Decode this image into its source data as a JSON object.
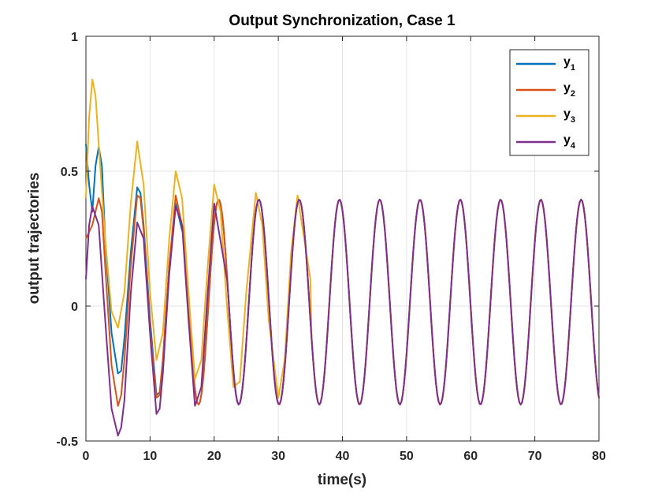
{
  "chart_data": {
    "type": "line",
    "title": "Output Synchronization, Case 1",
    "xlabel": "time(s)",
    "ylabel": "output trajectories",
    "xlim": [
      0,
      80
    ],
    "ylim": [
      -0.5,
      1
    ],
    "xticks": [
      0,
      10,
      20,
      30,
      40,
      50,
      60,
      70,
      80
    ],
    "xtick_labels": [
      "0",
      "10",
      "20",
      "30",
      "40",
      "50",
      "60",
      "70",
      "80"
    ],
    "yticks": [
      -0.5,
      0,
      0.5,
      1
    ],
    "ytick_labels": [
      "-0.5",
      "0",
      "0.5",
      "1"
    ],
    "grid": true,
    "legend_position": "top-right",
    "steady_state": {
      "amplitude": 0.38,
      "period": 6.28,
      "offset": 0.015
    },
    "series": [
      {
        "name": "y1",
        "label_main": "y",
        "label_sub": "1",
        "color": "#0072BD",
        "initial": 0.6,
        "points": [
          [
            0,
            0.6
          ],
          [
            0.5,
            0.45
          ],
          [
            1,
            0.35
          ],
          [
            1.5,
            0.52
          ],
          [
            2,
            0.59
          ],
          [
            2.5,
            0.52
          ],
          [
            3,
            0.25
          ],
          [
            4,
            -0.1
          ],
          [
            5,
            -0.25
          ],
          [
            5.5,
            -0.24
          ],
          [
            6,
            -0.12
          ],
          [
            7,
            0.2
          ],
          [
            8,
            0.44
          ],
          [
            8.5,
            0.42
          ],
          [
            9,
            0.3
          ],
          [
            10,
            -0.05
          ],
          [
            11,
            -0.33
          ],
          [
            11.5,
            -0.32
          ],
          [
            12,
            -0.2
          ],
          [
            13,
            0.15
          ],
          [
            14,
            0.38
          ],
          [
            15,
            0.28
          ]
        ]
      },
      {
        "name": "y2",
        "label_main": "y",
        "label_sub": "2",
        "color": "#D95319",
        "initial": 0.25,
        "points": [
          [
            0,
            0.25
          ],
          [
            1,
            0.3
          ],
          [
            2,
            0.4
          ],
          [
            2.5,
            0.35
          ],
          [
            3,
            0.15
          ],
          [
            4,
            -0.22
          ],
          [
            5,
            -0.37
          ],
          [
            5.5,
            -0.33
          ],
          [
            6,
            -0.2
          ],
          [
            7,
            0.15
          ],
          [
            8,
            0.41
          ],
          [
            8.5,
            0.4
          ],
          [
            9,
            0.28
          ],
          [
            10,
            -0.08
          ],
          [
            11,
            -0.34
          ],
          [
            11.5,
            -0.33
          ],
          [
            12,
            -0.2
          ],
          [
            13,
            0.15
          ],
          [
            14,
            0.41
          ],
          [
            15,
            0.3
          ]
        ]
      },
      {
        "name": "y3",
        "label_main": "y",
        "label_sub": "3",
        "color": "#EDB120",
        "initial": 0.4,
        "points": [
          [
            0,
            0.4
          ],
          [
            0.5,
            0.7
          ],
          [
            1,
            0.84
          ],
          [
            1.5,
            0.78
          ],
          [
            2,
            0.6
          ],
          [
            3,
            0.25
          ],
          [
            4,
            -0.02
          ],
          [
            5,
            -0.08
          ],
          [
            6,
            0.05
          ],
          [
            7,
            0.38
          ],
          [
            8,
            0.61
          ],
          [
            9,
            0.45
          ],
          [
            10,
            0.05
          ],
          [
            11,
            -0.2
          ],
          [
            12,
            -0.1
          ],
          [
            13,
            0.25
          ],
          [
            14,
            0.5
          ],
          [
            15,
            0.4
          ],
          [
            16,
            0.05
          ],
          [
            17,
            -0.27
          ],
          [
            18,
            -0.2
          ],
          [
            19,
            0.15
          ],
          [
            20,
            0.45
          ],
          [
            21,
            0.35
          ],
          [
            22,
            0.0
          ],
          [
            23,
            -0.3
          ],
          [
            24,
            -0.28
          ],
          [
            25,
            0.05
          ],
          [
            26.5,
            0.42
          ],
          [
            27.5,
            0.3
          ],
          [
            28.5,
            -0.05
          ],
          [
            30,
            -0.34
          ],
          [
            31,
            -0.2
          ],
          [
            32,
            0.2
          ],
          [
            33,
            0.41
          ],
          [
            35,
            0.1
          ]
        ]
      },
      {
        "name": "y4",
        "label_main": "y",
        "label_sub": "4",
        "color": "#7E2F8E",
        "initial": 0.1,
        "points": [
          [
            0,
            0.1
          ],
          [
            0.5,
            0.3
          ],
          [
            1,
            0.37
          ],
          [
            2,
            0.3
          ],
          [
            3,
            -0.05
          ],
          [
            4,
            -0.38
          ],
          [
            5,
            -0.48
          ],
          [
            5.5,
            -0.45
          ],
          [
            6,
            -0.35
          ],
          [
            7,
            0.05
          ],
          [
            8,
            0.31
          ],
          [
            9,
            0.25
          ],
          [
            10,
            -0.1
          ],
          [
            11,
            -0.4
          ],
          [
            11.5,
            -0.38
          ],
          [
            12,
            -0.25
          ],
          [
            13,
            0.12
          ],
          [
            14,
            0.37
          ],
          [
            15,
            0.3
          ],
          [
            16,
            -0.05
          ],
          [
            17,
            -0.37
          ],
          [
            18,
            -0.3
          ],
          [
            19,
            0.05
          ],
          [
            20,
            0.38
          ],
          [
            22,
            0.1
          ]
        ]
      }
    ]
  }
}
